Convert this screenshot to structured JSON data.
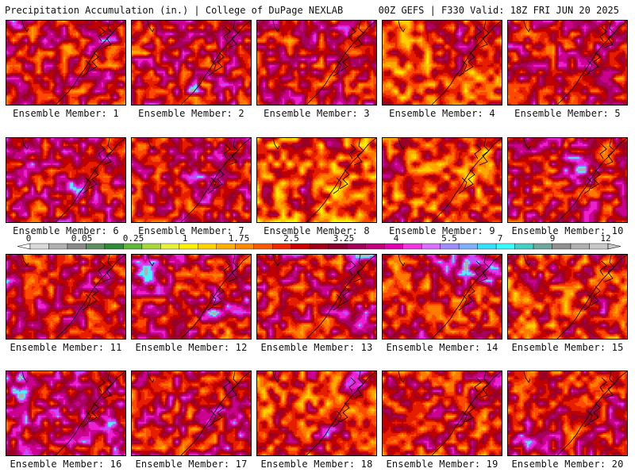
{
  "header": {
    "left": "Precipitation Accumulation (in.) | College of DuPage NEXLAB",
    "right": "00Z GEFS | F330 Valid: 18Z FRI JUN 20 2025"
  },
  "panels": [
    {
      "label": "Ensemble Member: 1"
    },
    {
      "label": "Ensemble Member: 2"
    },
    {
      "label": "Ensemble Member: 3"
    },
    {
      "label": "Ensemble Member: 4"
    },
    {
      "label": "Ensemble Member: 5"
    },
    {
      "label": "Ensemble Member: 6"
    },
    {
      "label": "Ensemble Member: 7"
    },
    {
      "label": "Ensemble Member: 8"
    },
    {
      "label": "Ensemble Member: 9"
    },
    {
      "label": "Ensemble Member: 10"
    },
    {
      "label": "Ensemble Member: 11"
    },
    {
      "label": "Ensemble Member: 12"
    },
    {
      "label": "Ensemble Member: 13"
    },
    {
      "label": "Ensemble Member: 14"
    },
    {
      "label": "Ensemble Member: 15"
    },
    {
      "label": "Ensemble Member: 16"
    },
    {
      "label": "Ensemble Member: 17"
    },
    {
      "label": "Ensemble Member: 18"
    },
    {
      "label": "Ensemble Member: 19"
    },
    {
      "label": "Ensemble Member: 20"
    }
  ],
  "legend": {
    "tick_labels": [
      "0",
      "0.05",
      "0.25",
      "1",
      "1.75",
      "2.5",
      "3.25",
      "4",
      "5.5",
      "7",
      "9",
      "12"
    ],
    "colors": [
      "#d9d9d9",
      "#b0b0b0",
      "#8a8a8a",
      "#5e8f5e",
      "#2e8b3a",
      "#5fb83a",
      "#a6d83a",
      "#e9f03a",
      "#fff200",
      "#ffd300",
      "#ffae00",
      "#ff8a00",
      "#ff5a00",
      "#ef2a00",
      "#cf0000",
      "#a30018",
      "#8a0030",
      "#a4005c",
      "#c4007e",
      "#e300b0",
      "#f533e0",
      "#d970ff",
      "#a08cff",
      "#7fb0ff",
      "#33e0ff",
      "#33ffff",
      "#40d0c8",
      "#70a8a0",
      "#909090",
      "#b0b0b0",
      "#c8c8c8"
    ]
  }
}
